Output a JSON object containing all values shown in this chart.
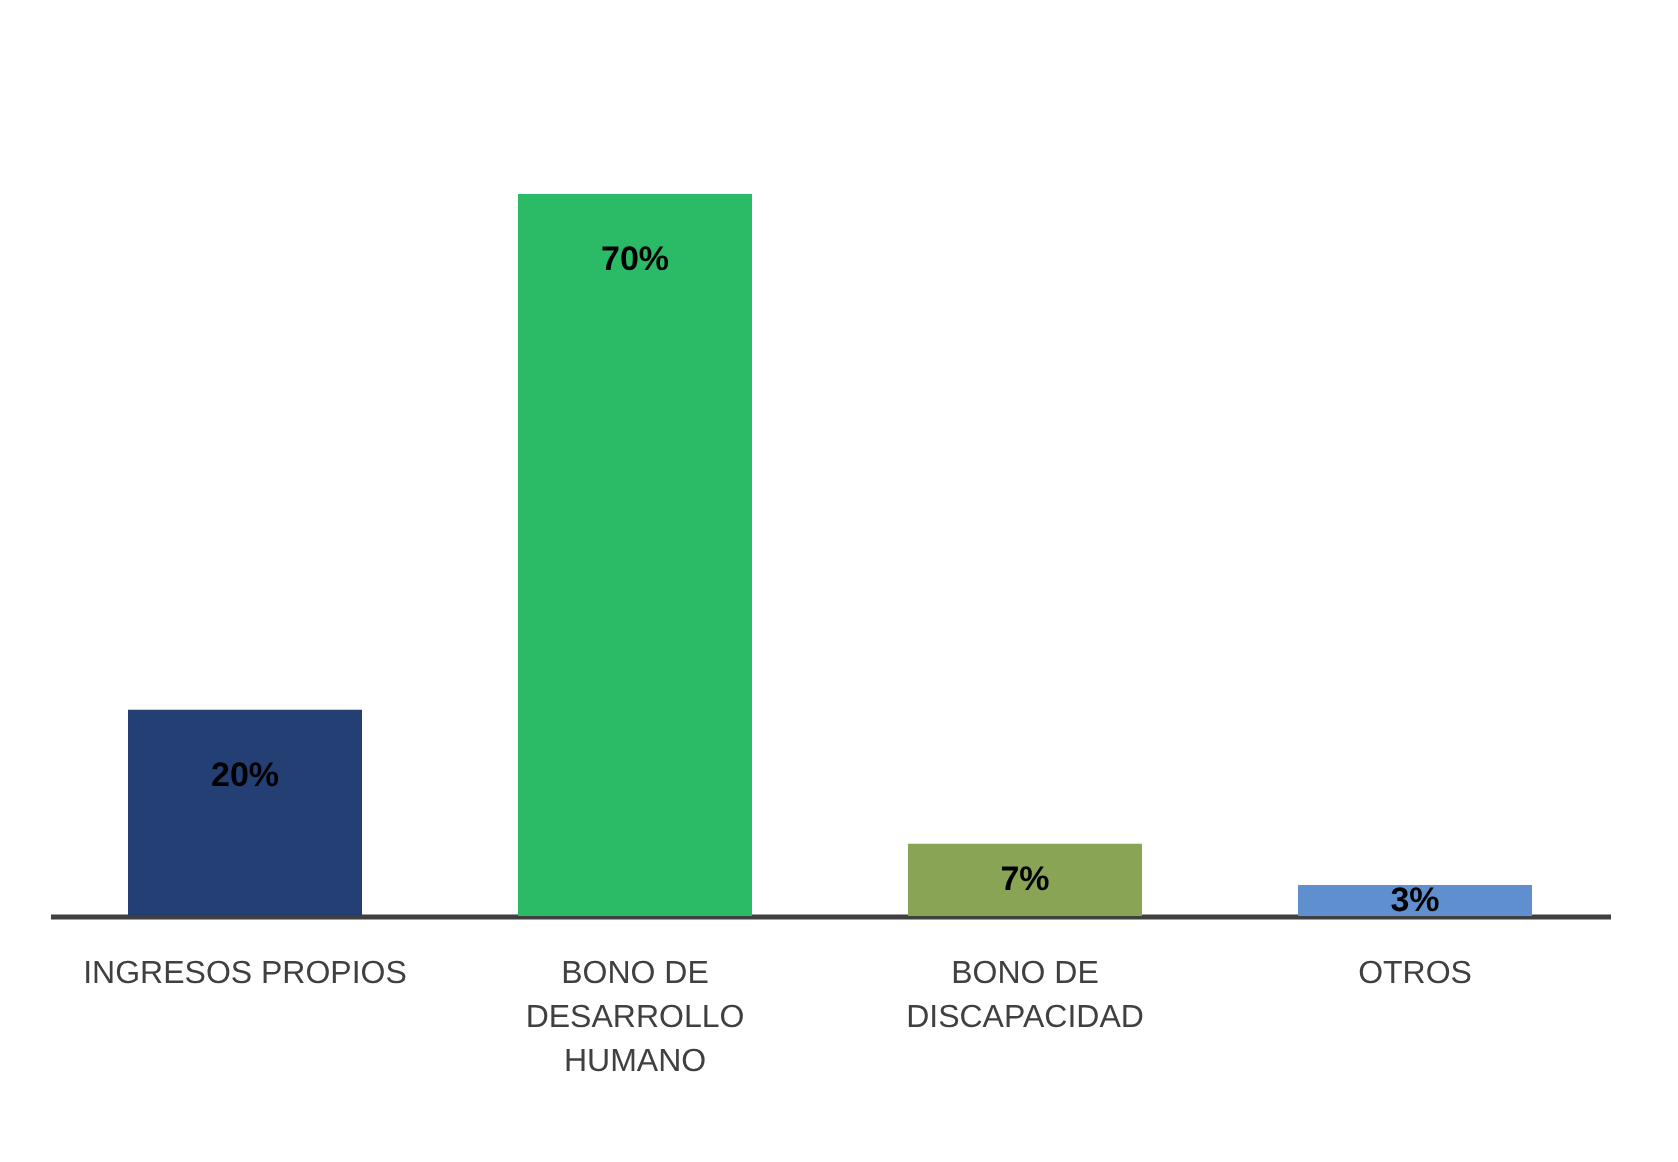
{
  "chart_data": {
    "type": "bar",
    "categories": [
      "INGRESOS PROPIOS",
      "BONO DE DESARROLLO HUMANO",
      "BONO DE DISCAPACIDAD",
      "OTROS"
    ],
    "values": [
      20,
      70,
      7,
      3
    ],
    "colors": [
      "#243f74",
      "#2bbb67",
      "#8aa456",
      "#5f8fcf"
    ],
    "value_labels": [
      "20%",
      "70%",
      "7%",
      "3%"
    ],
    "grid": false
  }
}
